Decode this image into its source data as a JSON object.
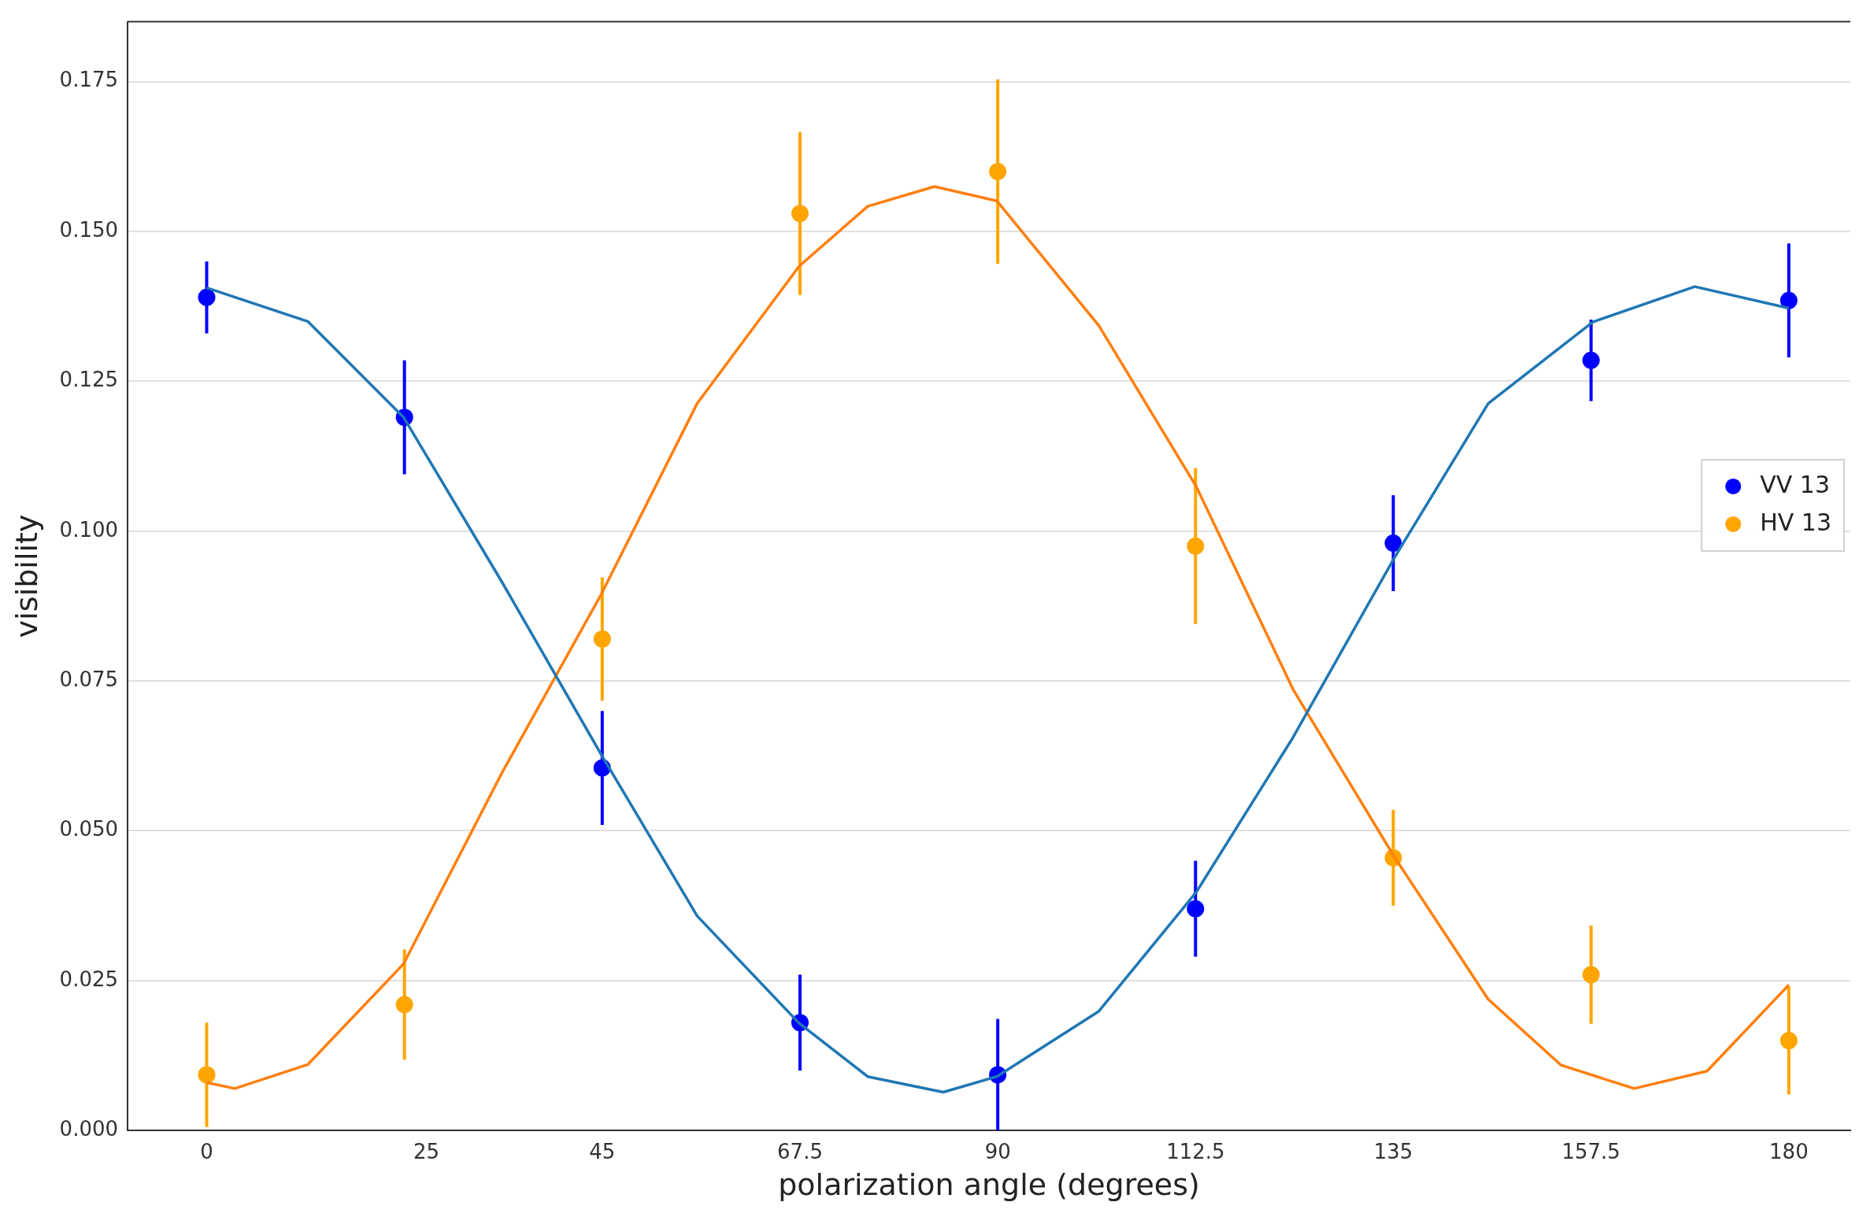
{
  "chart_data": {
    "type": "scatter",
    "xlabel": "polarization angle (degrees)",
    "ylabel": "visibility",
    "x": [
      0,
      22.5,
      45,
      67.5,
      90,
      112.5,
      135,
      157.5,
      180
    ],
    "xlim": [
      -9,
      187
    ],
    "xticks": [
      0,
      25,
      45,
      67.5,
      90,
      112.5,
      135,
      157.5,
      180
    ],
    "ylim": [
      0,
      0.185
    ],
    "yticks": [
      {
        "value": 0,
        "label": "0.000"
      },
      {
        "value": 0.025,
        "label": "0.025"
      },
      {
        "value": 0.05,
        "label": "0.050"
      },
      {
        "value": 0.075,
        "label": "0.075"
      },
      {
        "value": 0.1,
        "label": "0.100"
      },
      {
        "value": 0.125,
        "label": "0.125"
      },
      {
        "value": 0.15,
        "label": "0.150"
      },
      {
        "value": 0.175,
        "label": "0.175"
      }
    ],
    "grid": "y",
    "legend": "right",
    "marker": "circle",
    "series": [
      {
        "name": "VV 13",
        "color": "#0000ff",
        "values": [
          0.139,
          0.119,
          0.0605,
          0.018,
          0.0093,
          0.037,
          0.098,
          0.1285,
          0.1385
        ],
        "errors": [
          0.006,
          0.0095,
          0.0095,
          0.008,
          0.0093,
          0.008,
          0.008,
          0.0068,
          0.0095
        ]
      },
      {
        "name": "HV 13",
        "color": "#ffa500",
        "values": [
          0.0093,
          0.021,
          0.082,
          0.153,
          0.16,
          0.0975,
          0.0455,
          0.026,
          0.015
        ],
        "errors": [
          0.0087,
          0.0092,
          0.0103,
          0.0136,
          0.0154,
          0.013,
          0.008,
          0.0082,
          0.009
        ]
      },
      {
        "type": "line",
        "color": "#1f77b4",
        "marker": "none",
        "x": [
          0,
          11.5,
          22.4,
          33.6,
          44.9,
          55.8,
          67.4,
          75.2,
          83.8,
          89.9,
          101.5,
          112.6,
          123.6,
          135.1,
          145.8,
          157.7,
          169.3,
          180
        ],
        "values": [
          0.1406,
          0.135,
          0.119,
          0.0915,
          0.0627,
          0.0358,
          0.0179,
          0.009,
          0.0064,
          0.009,
          0.0199,
          0.0398,
          0.0656,
          0.0955,
          0.1213,
          0.1349,
          0.1408,
          0.1372
        ]
      },
      {
        "type": "line",
        "color": "#ff7f0e",
        "marker": "none",
        "x": [
          0,
          3.2,
          11.5,
          22.4,
          33.6,
          44.9,
          55.8,
          67.4,
          75.2,
          82.8,
          89.9,
          101.5,
          112.6,
          123.6,
          135.1,
          145.8,
          154.1,
          162.4,
          170.7,
          180
        ],
        "values": [
          0.008,
          0.007,
          0.011,
          0.0278,
          0.0597,
          0.0895,
          0.1213,
          0.1442,
          0.1542,
          0.1575,
          0.1551,
          0.1343,
          0.1074,
          0.0736,
          0.0457,
          0.0219,
          0.0109,
          0.007,
          0.0099,
          0.0243
        ]
      }
    ]
  }
}
